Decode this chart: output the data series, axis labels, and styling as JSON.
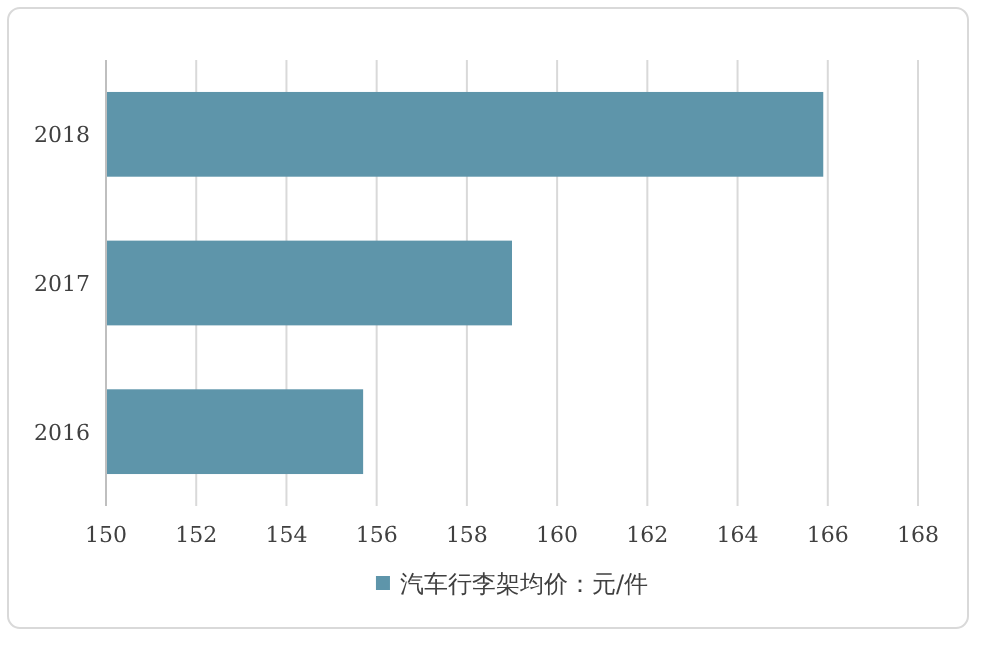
{
  "chart_data": {
    "type": "bar",
    "orientation": "horizontal",
    "categories": [
      "2018",
      "2017",
      "2016"
    ],
    "series": [
      {
        "name": "汽车行李架均价：元/件",
        "color": "#5e95aa",
        "values": [
          165.9,
          159.0,
          155.7
        ]
      }
    ],
    "xlim": [
      150,
      168
    ],
    "xticks": [
      150,
      152,
      154,
      156,
      158,
      160,
      162,
      164,
      166,
      168
    ],
    "grid": "x",
    "legend": "bottom"
  }
}
